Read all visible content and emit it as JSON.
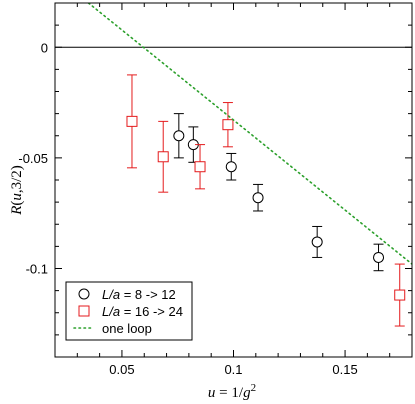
{
  "chart_data": {
    "type": "scatter",
    "xlabel": "u = 1/g²",
    "ylabel": "R(u,3/2)",
    "xlim": [
      0.02,
      0.18
    ],
    "ylim": [
      -0.14,
      0.02
    ],
    "xticks": [
      0.05,
      0.1,
      0.15
    ],
    "yticks": [
      0,
      -0.05,
      -0.1
    ],
    "xtick_labels": [
      "0.05",
      "0.1",
      "0.15"
    ],
    "ytick_labels": [
      "0",
      "-0.05",
      "-0.1"
    ],
    "minor_x_step": 0.01,
    "minor_y_step": 0.01,
    "grid": false,
    "legend_position": "bottom-left",
    "legend": {
      "entries": [
        {
          "series": "circles",
          "prefix": "L/a",
          "text": " = 8 -> 12"
        },
        {
          "series": "squares",
          "prefix": "L/a",
          "text": " = 16 -> 24"
        },
        {
          "series": "oneloop",
          "prefix": "",
          "text": "one loop"
        }
      ]
    },
    "reference_line": {
      "y": 0,
      "color": "#000000"
    },
    "series": [
      {
        "id": "circles",
        "marker": "circle",
        "color": "#000000",
        "points": [
          {
            "x": 0.0755,
            "y": -0.04,
            "err": 0.01
          },
          {
            "x": 0.082,
            "y": -0.044,
            "err": 0.008
          },
          {
            "x": 0.099,
            "y": -0.054,
            "err": 0.006
          },
          {
            "x": 0.111,
            "y": -0.068,
            "err": 0.006
          },
          {
            "x": 0.1375,
            "y": -0.088,
            "err": 0.007
          },
          {
            "x": 0.165,
            "y": -0.095,
            "err": 0.006
          }
        ]
      },
      {
        "id": "squares",
        "marker": "square",
        "color": "#e41a1c",
        "points": [
          {
            "x": 0.0545,
            "y": -0.0335,
            "err": 0.021
          },
          {
            "x": 0.0685,
            "y": -0.0495,
            "err": 0.016
          },
          {
            "x": 0.085,
            "y": -0.054,
            "err": 0.01
          },
          {
            "x": 0.0975,
            "y": -0.035,
            "err": 0.01
          },
          {
            "x": 0.1745,
            "y": -0.112,
            "err": 0.014
          }
        ]
      },
      {
        "id": "oneloop",
        "marker": "line",
        "color": "#2ca02c",
        "dash": "dotted",
        "line": [
          {
            "x": 0.035,
            "y": 0.02
          },
          {
            "x": 0.18,
            "y": -0.098
          }
        ]
      }
    ]
  }
}
